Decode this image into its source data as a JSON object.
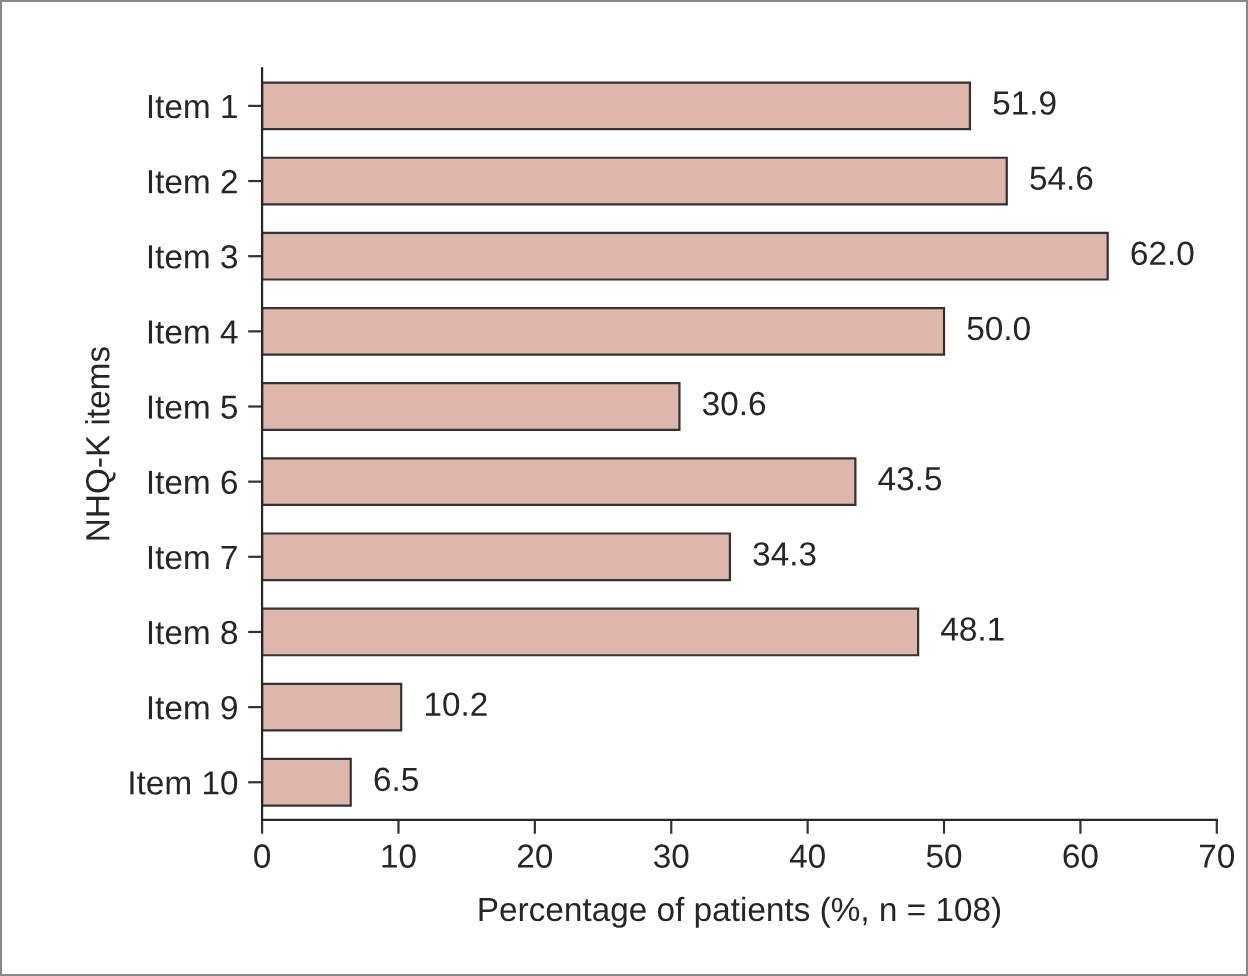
{
  "chart_data": {
    "type": "bar",
    "orientation": "horizontal",
    "categories": [
      "Item 1",
      "Item 2",
      "Item 3",
      "Item 4",
      "Item 5",
      "Item 6",
      "Item 7",
      "Item 8",
      "Item 9",
      "Item 10"
    ],
    "values": [
      51.9,
      54.6,
      62.0,
      50.0,
      30.6,
      43.5,
      34.3,
      48.1,
      10.2,
      6.5
    ],
    "value_labels": [
      "51.9",
      "54.6",
      "62.0",
      "50.0",
      "30.6",
      "43.5",
      "34.3",
      "48.1",
      "10.2",
      "6.5"
    ],
    "color": "#deb6ab",
    "xlabel": "Percentage of patients (%, n = 108)",
    "ylabel": "NHQ-K items",
    "xlim": [
      0,
      70
    ],
    "xticks": [
      0,
      10,
      20,
      30,
      40,
      50,
      60,
      70
    ],
    "grid": false
  }
}
